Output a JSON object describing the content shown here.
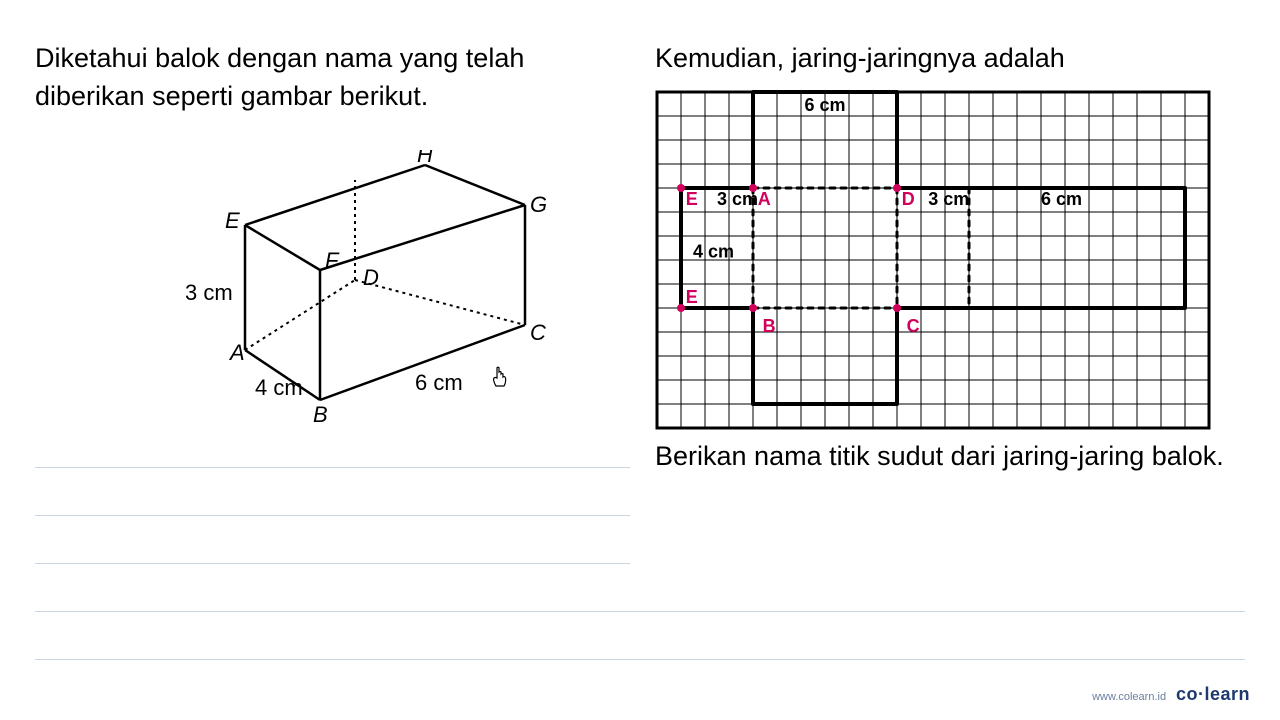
{
  "left": {
    "text": "Diketahui balok dengan nama yang telah diberikan seperti gambar berikut.",
    "cuboid": {
      "vertices": {
        "A": "A",
        "B": "B",
        "C": "C",
        "D": "D",
        "E": "E",
        "F": "F",
        "G": "G",
        "H": "H"
      },
      "dims": {
        "height": "3 cm",
        "depth": "4 cm",
        "length": "6 cm"
      },
      "stroke": "#000000",
      "dash_stroke": "#000000",
      "line_width": 2
    }
  },
  "right": {
    "text1": "Kemudian, jaring-jaringnya adalah",
    "text2": "Berikan nama titik sudut dari jaring-jaring balok.",
    "net": {
      "grid_cols": 23,
      "grid_rows": 14,
      "cell": 24,
      "grid_color": "#000000",
      "outline_color": "#000000",
      "outline_width": 4,
      "annot_color": "#d0005c",
      "dot_color": "#d0005c",
      "labels": {
        "top_6cm": "6 cm",
        "e1": "E",
        "e2": "E",
        "a": "A",
        "b": "B",
        "c": "C",
        "d": "D",
        "l3a": "3 cm",
        "l3b": "3 cm",
        "l6b": "6 cm",
        "l4": "4 cm"
      }
    }
  },
  "footer": {
    "url": "www.colearn.id",
    "brand": "co·learn"
  }
}
